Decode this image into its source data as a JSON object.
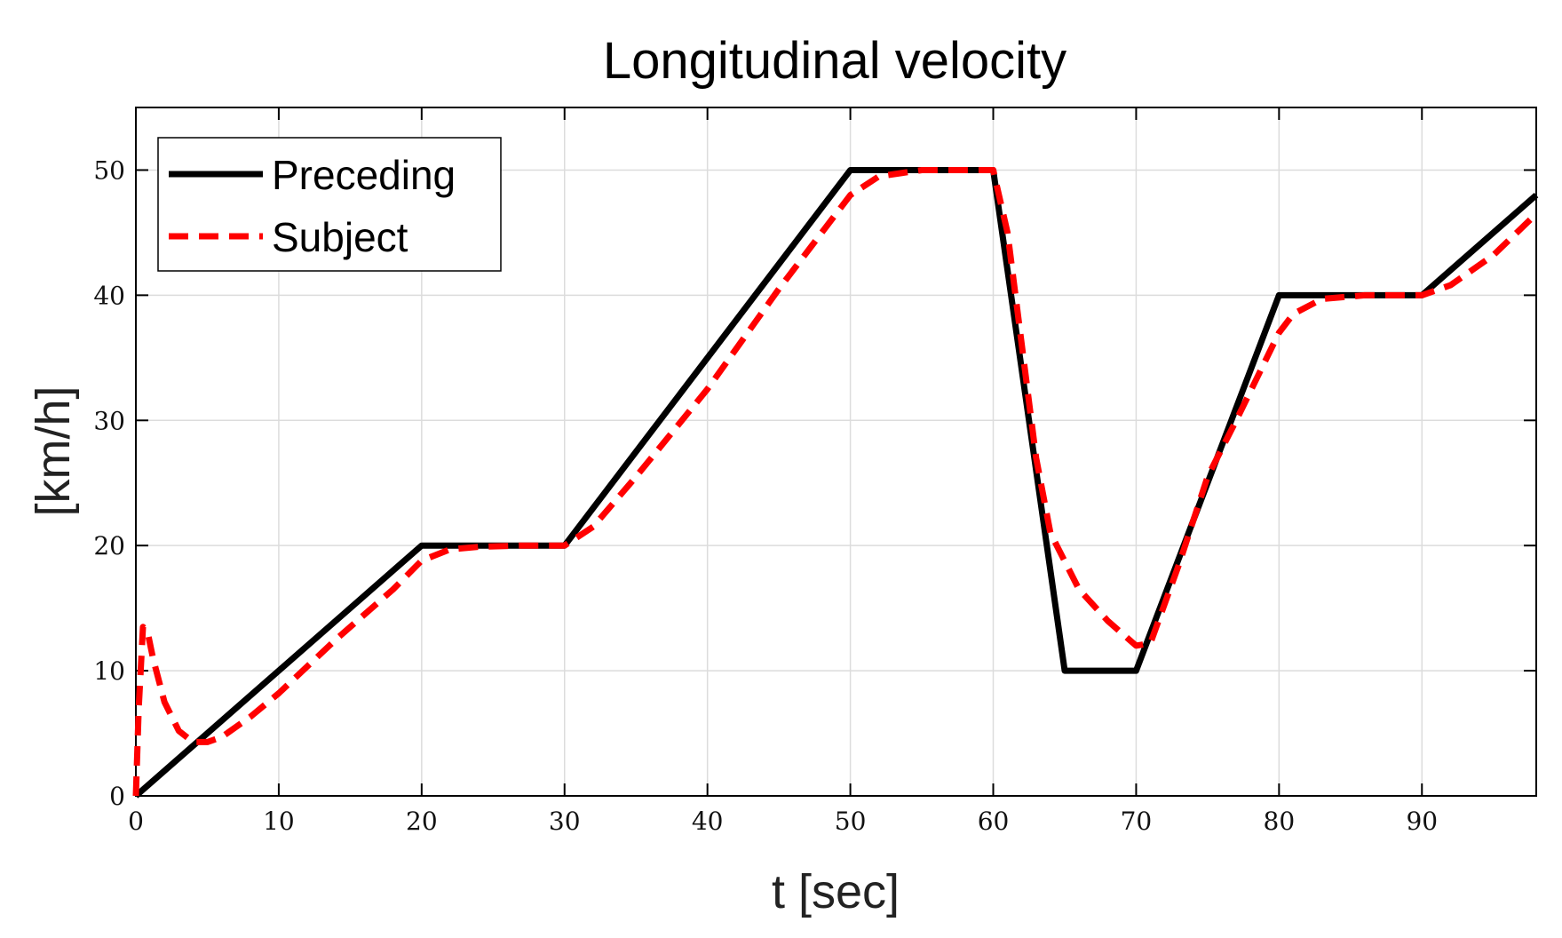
{
  "chart_data": {
    "type": "line",
    "title": "Longitudinal velocity",
    "xlabel": "t [sec]",
    "ylabel": "[km/h]",
    "xlim": [
      0,
      98
    ],
    "ylim": [
      0,
      55
    ],
    "xticks": [
      0,
      10,
      20,
      30,
      40,
      50,
      60,
      70,
      80,
      90
    ],
    "yticks": [
      0,
      10,
      20,
      30,
      40,
      50
    ],
    "xtick_labels": [
      "0",
      "10",
      "20",
      "30",
      "40",
      "50",
      "60",
      "70",
      "80",
      "90"
    ],
    "ytick_labels": [
      "0",
      "10",
      "20",
      "30",
      "40",
      "50"
    ],
    "grid": true,
    "legend_position": "top-left",
    "series": [
      {
        "name": "Preceding",
        "color": "#000000",
        "style": "solid",
        "x": [
          0,
          20,
          30,
          50,
          60,
          65,
          70,
          80,
          90,
          98
        ],
        "y": [
          0,
          20,
          20,
          50,
          50,
          10,
          10,
          40,
          40,
          48
        ]
      },
      {
        "name": "Subject",
        "color": "#ff0000",
        "style": "dashed",
        "x": [
          0,
          0.2,
          0.5,
          0.8,
          1.2,
          2,
          3,
          4,
          5,
          6,
          8,
          10,
          14,
          18,
          20,
          22,
          24,
          27,
          30,
          32,
          35,
          40,
          45,
          50,
          52,
          55,
          58,
          60,
          61,
          62,
          63,
          64,
          66,
          68,
          70,
          71,
          73,
          75,
          77,
          80,
          81,
          83,
          86,
          90,
          92,
          95,
          98
        ],
        "y": [
          0,
          7,
          13.5,
          13.2,
          11,
          7.5,
          5.2,
          4.3,
          4.3,
          4.7,
          6.3,
          8.2,
          12.5,
          16.5,
          18.8,
          19.7,
          19.9,
          20,
          20,
          21.5,
          25.5,
          32.5,
          40.5,
          48,
          49.5,
          50,
          50,
          50,
          45,
          36,
          27,
          21,
          16.5,
          14,
          12,
          12.2,
          18.5,
          25.5,
          30,
          37,
          38.5,
          39.7,
          40,
          40,
          40.8,
          43.2,
          46.5
        ]
      }
    ]
  }
}
